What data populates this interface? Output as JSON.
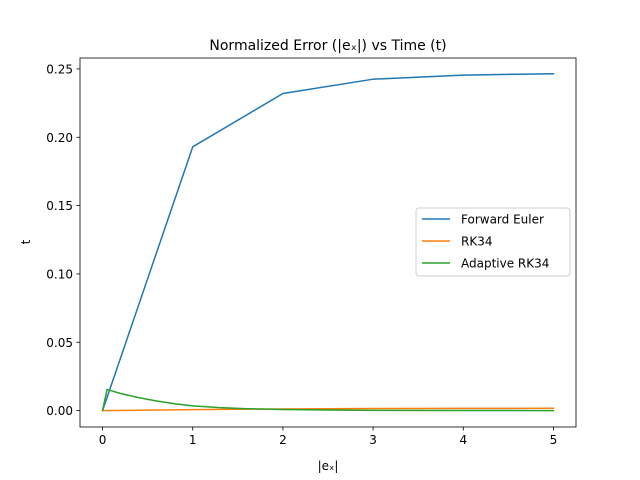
{
  "chart_data": {
    "type": "line",
    "title": "Normalized Error (|eₓ|) vs Time (t)",
    "xlabel": "|eₓ|",
    "ylabel": "t",
    "xlim": [
      -0.25,
      5.25
    ],
    "ylim": [
      -0.012,
      0.258
    ],
    "xticks": [
      0,
      1,
      2,
      3,
      4,
      5
    ],
    "xtick_labels": [
      "0",
      "1",
      "2",
      "3",
      "4",
      "5"
    ],
    "yticks": [
      0.0,
      0.05,
      0.1,
      0.15,
      0.2,
      0.25
    ],
    "ytick_labels": [
      "0.00",
      "0.05",
      "0.10",
      "0.15",
      "0.20",
      "0.25"
    ],
    "grid": false,
    "legend_position": "center-right",
    "series": [
      {
        "name": "Forward Euler",
        "color": "#1f77b4",
        "x": [
          0,
          1,
          2,
          3,
          4,
          5
        ],
        "y": [
          0.0,
          0.193,
          0.232,
          0.2425,
          0.2455,
          0.2465
        ]
      },
      {
        "name": "RK34",
        "color": "#ff7f0e",
        "x": [
          0,
          1,
          2,
          3,
          4,
          5
        ],
        "y": [
          0.0,
          0.0007,
          0.0012,
          0.0015,
          0.0016,
          0.0017
        ]
      },
      {
        "name": "Adaptive RK34",
        "color": "#2ca02c",
        "x": [
          0,
          0.05,
          0.2,
          0.4,
          0.6,
          0.8,
          1.0,
          1.3,
          1.6,
          2.0,
          2.5,
          3.0,
          4.0,
          5.0
        ],
        "y": [
          0.0,
          0.0155,
          0.0125,
          0.0095,
          0.007,
          0.005,
          0.0035,
          0.0022,
          0.0014,
          0.0008,
          0.0004,
          0.0002,
          0.0001,
          0.0
        ]
      }
    ]
  }
}
